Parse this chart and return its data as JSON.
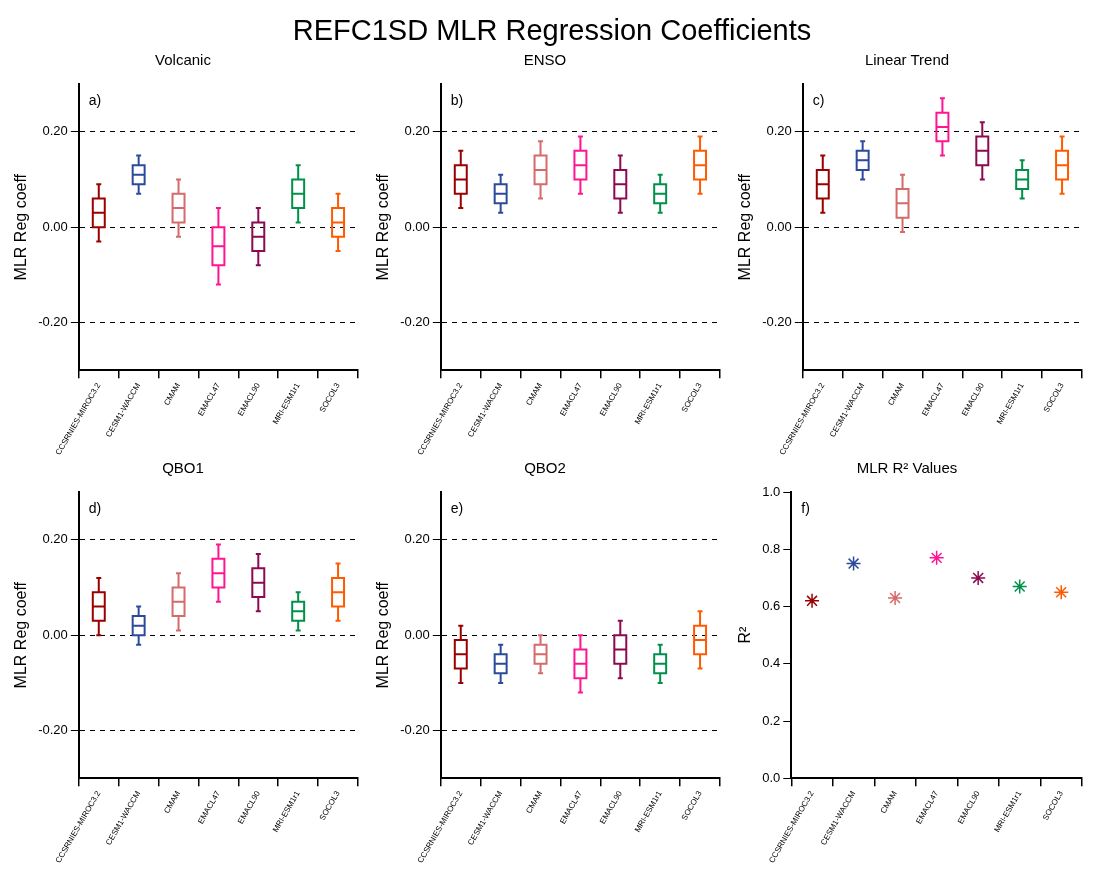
{
  "chart_data": [
    {
      "type": "other",
      "title": "REFC1SD MLR Regression Coefficients"
    },
    {
      "type": "box",
      "title": "Volcanic",
      "ylabel": "MLR Reg coeff",
      "annotations": [
        "a)"
      ],
      "grid": "y",
      "categories": [
        "CCSRNIES-MIROC3.2",
        "CESM1-WACCM",
        "CMAM",
        "EMACL47",
        "EMACL90",
        "MRI-ESM1r1",
        "SOCOL3"
      ],
      "colors": [
        "#990000",
        "#2b4a9a",
        "#d46a6a",
        "#ff1493",
        "#8b0a50",
        "#00904a",
        "#ff5a00"
      ],
      "ylim": [
        -0.3,
        0.3
      ],
      "yticks": [
        {
          "value": -0.2,
          "label": "-0.20"
        },
        {
          "value": 0,
          "label": "0.00"
        },
        {
          "value": 0.2,
          "label": "0.20"
        }
      ],
      "boxes": [
        {
          "low": -0.03,
          "q1": 0.0,
          "median": 0.03,
          "q3": 0.06,
          "high": 0.09
        },
        {
          "low": 0.07,
          "q1": 0.09,
          "median": 0.11,
          "q3": 0.13,
          "high": 0.15
        },
        {
          "low": -0.02,
          "q1": 0.01,
          "median": 0.04,
          "q3": 0.07,
          "high": 0.1
        },
        {
          "low": -0.12,
          "q1": -0.08,
          "median": -0.04,
          "q3": 0.0,
          "high": 0.04
        },
        {
          "low": -0.08,
          "q1": -0.05,
          "median": -0.02,
          "q3": 0.01,
          "high": 0.04
        },
        {
          "low": 0.01,
          "q1": 0.04,
          "median": 0.07,
          "q3": 0.1,
          "high": 0.13
        },
        {
          "low": -0.05,
          "q1": -0.02,
          "median": 0.01,
          "q3": 0.04,
          "high": 0.07
        }
      ]
    },
    {
      "type": "box",
      "title": "ENSO",
      "ylabel": "MLR Reg coeff",
      "annotations": [
        "b)"
      ],
      "grid": "y",
      "categories": [
        "CCSRNIES-MIROC3.2",
        "CESM1-WACCM",
        "CMAM",
        "EMACL47",
        "EMACL90",
        "MRI-ESM1r1",
        "SOCOL3"
      ],
      "colors": [
        "#990000",
        "#2b4a9a",
        "#d46a6a",
        "#ff1493",
        "#8b0a50",
        "#00904a",
        "#ff5a00"
      ],
      "ylim": [
        -0.3,
        0.3
      ],
      "yticks": [
        {
          "value": -0.2,
          "label": "-0.20"
        },
        {
          "value": 0,
          "label": "0.00"
        },
        {
          "value": 0.2,
          "label": "0.20"
        }
      ],
      "boxes": [
        {
          "low": 0.04,
          "q1": 0.07,
          "median": 0.1,
          "q3": 0.13,
          "high": 0.16
        },
        {
          "low": 0.03,
          "q1": 0.05,
          "median": 0.07,
          "q3": 0.09,
          "high": 0.11
        },
        {
          "low": 0.06,
          "q1": 0.09,
          "median": 0.12,
          "q3": 0.15,
          "high": 0.18
        },
        {
          "low": 0.07,
          "q1": 0.1,
          "median": 0.13,
          "q3": 0.16,
          "high": 0.19
        },
        {
          "low": 0.03,
          "q1": 0.06,
          "median": 0.09,
          "q3": 0.12,
          "high": 0.15
        },
        {
          "low": 0.03,
          "q1": 0.05,
          "median": 0.07,
          "q3": 0.09,
          "high": 0.11
        },
        {
          "low": 0.07,
          "q1": 0.1,
          "median": 0.13,
          "q3": 0.16,
          "high": 0.19
        }
      ]
    },
    {
      "type": "box",
      "title": "Linear Trend",
      "ylabel": "MLR Reg coeff",
      "annotations": [
        "c)"
      ],
      "grid": "y",
      "categories": [
        "CCSRNIES-MIROC3.2",
        "CESM1-WACCM",
        "CMAM",
        "EMACL47",
        "EMACL90",
        "MRI-ESM1r1",
        "SOCOL3"
      ],
      "colors": [
        "#990000",
        "#2b4a9a",
        "#d46a6a",
        "#ff1493",
        "#8b0a50",
        "#00904a",
        "#ff5a00"
      ],
      "ylim": [
        -0.3,
        0.3
      ],
      "yticks": [
        {
          "value": -0.2,
          "label": "-0.20"
        },
        {
          "value": 0,
          "label": "0.00"
        },
        {
          "value": 0.2,
          "label": "0.20"
        }
      ],
      "boxes": [
        {
          "low": 0.03,
          "q1": 0.06,
          "median": 0.09,
          "q3": 0.12,
          "high": 0.15
        },
        {
          "low": 0.1,
          "q1": 0.12,
          "median": 0.14,
          "q3": 0.16,
          "high": 0.18
        },
        {
          "low": -0.01,
          "q1": 0.02,
          "median": 0.05,
          "q3": 0.08,
          "high": 0.11
        },
        {
          "low": 0.15,
          "q1": 0.18,
          "median": 0.21,
          "q3": 0.24,
          "high": 0.27
        },
        {
          "low": 0.1,
          "q1": 0.13,
          "median": 0.16,
          "q3": 0.19,
          "high": 0.22
        },
        {
          "low": 0.06,
          "q1": 0.08,
          "median": 0.1,
          "q3": 0.12,
          "high": 0.14
        },
        {
          "low": 0.07,
          "q1": 0.1,
          "median": 0.13,
          "q3": 0.16,
          "high": 0.19
        }
      ]
    },
    {
      "type": "box",
      "title": "QBO1",
      "ylabel": "MLR Reg coeff",
      "annotations": [
        "d)"
      ],
      "grid": "y",
      "categories": [
        "CCSRNIES-MIROC3.2",
        "CESM1-WACCM",
        "CMAM",
        "EMACL47",
        "EMACL90",
        "MRI-ESM1r1",
        "SOCOL3"
      ],
      "colors": [
        "#990000",
        "#2b4a9a",
        "#d46a6a",
        "#ff1493",
        "#8b0a50",
        "#00904a",
        "#ff5a00"
      ],
      "ylim": [
        -0.3,
        0.3
      ],
      "yticks": [
        {
          "value": -0.2,
          "label": "-0.20"
        },
        {
          "value": 0,
          "label": "0.00"
        },
        {
          "value": 0.2,
          "label": "0.20"
        }
      ],
      "boxes": [
        {
          "low": 0.0,
          "q1": 0.03,
          "median": 0.06,
          "q3": 0.09,
          "high": 0.12
        },
        {
          "low": -0.02,
          "q1": 0.0,
          "median": 0.02,
          "q3": 0.04,
          "high": 0.06
        },
        {
          "low": 0.01,
          "q1": 0.04,
          "median": 0.07,
          "q3": 0.1,
          "high": 0.13
        },
        {
          "low": 0.07,
          "q1": 0.1,
          "median": 0.13,
          "q3": 0.16,
          "high": 0.19
        },
        {
          "low": 0.05,
          "q1": 0.08,
          "median": 0.11,
          "q3": 0.14,
          "high": 0.17
        },
        {
          "low": 0.01,
          "q1": 0.03,
          "median": 0.05,
          "q3": 0.07,
          "high": 0.09
        },
        {
          "low": 0.03,
          "q1": 0.06,
          "median": 0.09,
          "q3": 0.12,
          "high": 0.15
        }
      ]
    },
    {
      "type": "box",
      "title": "QBO2",
      "ylabel": "MLR Reg coeff",
      "annotations": [
        "e)"
      ],
      "grid": "y",
      "categories": [
        "CCSRNIES-MIROC3.2",
        "CESM1-WACCM",
        "CMAM",
        "EMACL47",
        "EMACL90",
        "MRI-ESM1r1",
        "SOCOL3"
      ],
      "colors": [
        "#990000",
        "#2b4a9a",
        "#d46a6a",
        "#ff1493",
        "#8b0a50",
        "#00904a",
        "#ff5a00"
      ],
      "ylim": [
        -0.3,
        0.3
      ],
      "yticks": [
        {
          "value": -0.2,
          "label": "-0.20"
        },
        {
          "value": 0,
          "label": "0.00"
        },
        {
          "value": 0.2,
          "label": "0.20"
        }
      ],
      "boxes": [
        {
          "low": -0.1,
          "q1": -0.07,
          "median": -0.04,
          "q3": -0.01,
          "high": 0.02
        },
        {
          "low": -0.1,
          "q1": -0.08,
          "median": -0.06,
          "q3": -0.04,
          "high": -0.02
        },
        {
          "low": -0.08,
          "q1": -0.06,
          "median": -0.04,
          "q3": -0.02,
          "high": 0.0
        },
        {
          "low": -0.12,
          "q1": -0.09,
          "median": -0.06,
          "q3": -0.03,
          "high": 0.0
        },
        {
          "low": -0.09,
          "q1": -0.06,
          "median": -0.03,
          "q3": 0.0,
          "high": 0.03
        },
        {
          "low": -0.1,
          "q1": -0.08,
          "median": -0.06,
          "q3": -0.04,
          "high": -0.02
        },
        {
          "low": -0.07,
          "q1": -0.04,
          "median": -0.01,
          "q3": 0.02,
          "high": 0.05
        }
      ]
    },
    {
      "type": "scatter",
      "title": "MLR R² Values",
      "ylabel": "R²",
      "annotations": [
        "f)"
      ],
      "marker": "cross",
      "categories": [
        "CCSRNIES-MIROC3.2",
        "CESM1-WACCM",
        "CMAM",
        "EMACL47",
        "EMACL90",
        "MRI-ESM1r1",
        "SOCOL3"
      ],
      "colors": [
        "#990000",
        "#2b4a9a",
        "#d46a6a",
        "#ff1493",
        "#8b0a50",
        "#00904a",
        "#ff5a00"
      ],
      "values": [
        0.62,
        0.75,
        0.63,
        0.77,
        0.7,
        0.67,
        0.65
      ],
      "ylim": [
        0,
        1
      ],
      "yticks": [
        {
          "value": 0,
          "label": "0.0"
        },
        {
          "value": 0.2,
          "label": "0.2"
        },
        {
          "value": 0.4,
          "label": "0.4"
        },
        {
          "value": 0.6,
          "label": "0.6"
        },
        {
          "value": 0.8,
          "label": "0.8"
        },
        {
          "value": 1,
          "label": "1.0"
        }
      ]
    }
  ]
}
